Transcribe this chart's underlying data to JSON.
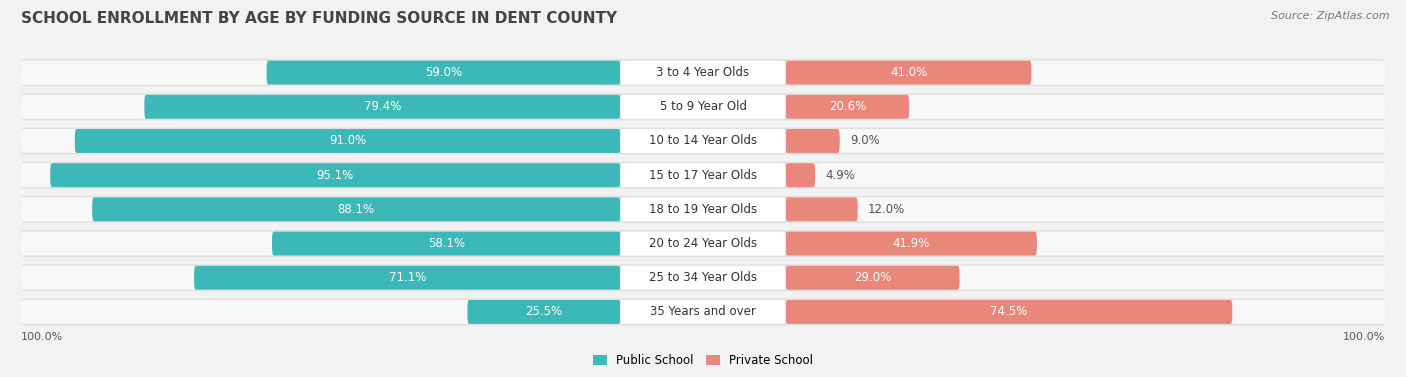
{
  "title": "SCHOOL ENROLLMENT BY AGE BY FUNDING SOURCE IN DENT COUNTY",
  "source": "Source: ZipAtlas.com",
  "categories": [
    "3 to 4 Year Olds",
    "5 to 9 Year Old",
    "10 to 14 Year Olds",
    "15 to 17 Year Olds",
    "18 to 19 Year Olds",
    "20 to 24 Year Olds",
    "25 to 34 Year Olds",
    "35 Years and over"
  ],
  "public_values": [
    59.0,
    79.4,
    91.0,
    95.1,
    88.1,
    58.1,
    71.1,
    25.5
  ],
  "private_values": [
    41.0,
    20.6,
    9.0,
    4.9,
    12.0,
    41.9,
    29.0,
    74.5
  ],
  "public_color": "#3db8b8",
  "private_color": "#e8877a",
  "bg_color": "#f2f2f2",
  "row_bg_color": "#e0e0e0",
  "bar_white_bg": "#f8f8f8",
  "title_fontsize": 11,
  "source_fontsize": 8,
  "label_fontsize": 8.5,
  "cat_fontsize": 8.5,
  "legend_fontsize": 8.5,
  "axis_label_fontsize": 8
}
